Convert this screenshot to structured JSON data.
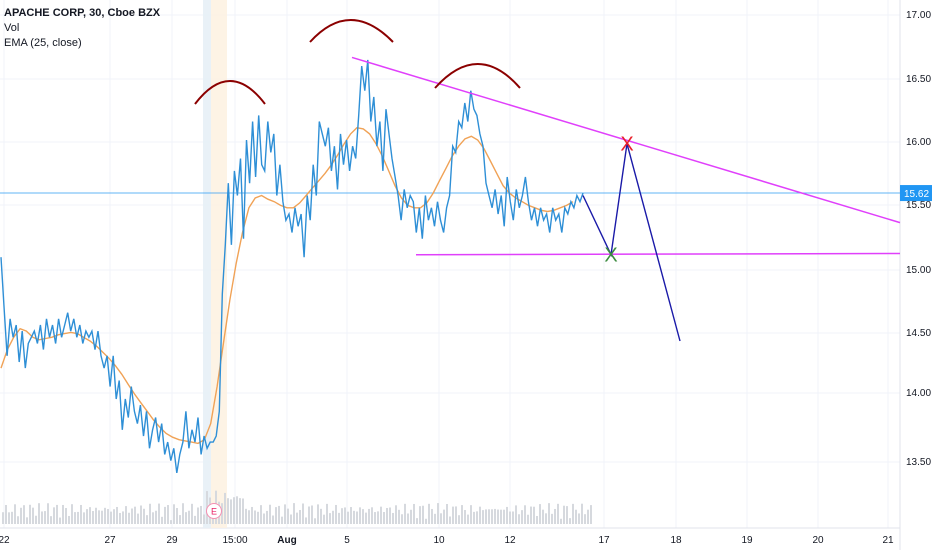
{
  "legend": {
    "title": "APACHE CORP, 30, Cboe BZX",
    "vol": "Vol",
    "ema": "EMA (25, close)"
  },
  "current_price": "15.62",
  "earnings_marker": "E",
  "colors": {
    "price": "#2e8fd6",
    "ema": "#f0a256",
    "trendline": "#e040fb",
    "projection": "#1a1aa8",
    "arcs": "#8b0000",
    "x_red": "#e8202a",
    "x_green": "#3d8c40",
    "price_line": "#2196f3",
    "axis_text": "#131722",
    "volume": "#d6d9de"
  },
  "chart_data": {
    "type": "line",
    "title": "APACHE CORP, 30, Cboe BZX",
    "x_ticks": [
      "22",
      "27",
      "29",
      "15:00",
      "Aug",
      "5",
      "10",
      "12",
      "17",
      "18",
      "19",
      "20",
      "21"
    ],
    "y_ticks": [
      "13.50",
      "14.00",
      "14.50",
      "15.00",
      "15.50",
      "16.00",
      "16.50",
      "17.00"
    ],
    "ylim": [
      13.05,
      17.05
    ],
    "current_price": 15.62,
    "series": [
      {
        "name": "",
        "values": [
          15.1,
          14.7,
          14.3,
          14.6,
          14.45,
          14.55,
          14.25,
          14.5,
          14.2,
          14.4,
          14.45,
          14.5,
          14.4,
          14.55,
          14.35,
          14.6,
          14.45,
          14.55,
          14.4,
          14.6,
          14.45,
          14.55,
          14.65,
          14.5,
          14.6,
          14.45,
          14.55,
          14.4,
          14.5,
          14.45,
          14.5,
          14.35,
          14.5,
          14.3,
          14.2,
          14.3,
          14.05,
          14.3,
          13.95,
          14.1,
          13.7,
          13.95,
          13.8,
          14.05,
          13.85,
          13.75,
          13.9,
          13.65,
          13.85,
          13.55,
          13.7,
          13.8,
          13.6,
          13.75,
          13.5,
          13.6,
          13.45,
          13.55,
          13.35,
          13.5,
          13.6,
          13.85,
          13.55,
          13.7,
          13.6,
          13.8,
          13.5,
          13.65,
          13.55,
          13.6,
          13.6,
          13.65,
          13.85,
          14.8,
          15.2,
          15.7,
          15.2,
          15.8,
          15.6,
          15.9,
          15.25,
          16.05,
          15.7,
          16.2,
          15.75,
          16.25,
          15.85,
          15.8,
          16.2,
          15.95,
          16.1,
          15.6,
          15.85,
          15.55,
          15.4,
          15.45,
          15.3,
          15.5,
          15.35,
          15.45,
          15.1,
          15.6,
          15.4,
          15.85,
          15.6,
          16.2,
          16.1,
          16.0,
          16.15,
          15.8,
          16.0,
          15.65,
          16.1,
          15.85,
          16.05,
          15.8,
          16.0,
          15.9,
          16.25,
          16.65,
          16.45,
          16.7,
          16.2,
          16.4,
          16.0,
          16.2,
          15.8,
          16.3,
          16.1,
          15.9,
          15.75,
          15.6,
          15.4,
          15.65,
          15.5,
          15.6,
          15.55,
          15.3,
          15.5,
          15.25,
          15.6,
          15.4,
          15.5,
          15.35,
          15.55,
          15.4,
          15.3,
          15.5,
          15.6,
          16.0,
          15.95,
          16.2,
          16.15,
          16.35,
          16.2,
          16.45,
          16.3,
          16.25,
          16.1,
          16.0,
          15.7,
          15.6,
          15.5,
          15.65,
          15.45,
          15.6,
          15.35,
          15.75,
          15.55,
          15.4,
          15.65,
          15.5,
          15.6,
          15.75,
          15.55,
          15.4,
          15.5,
          15.35,
          15.5,
          15.4,
          15.45,
          15.3,
          15.5,
          15.4,
          15.45,
          15.3,
          15.5,
          15.45,
          15.55,
          15.5,
          15.6,
          15.55,
          15.62
        ],
        "color": "#2e8fd6"
      },
      {
        "name": "",
        "values": [
          14.2,
          14.35,
          14.45,
          14.52,
          14.5,
          14.45,
          14.43,
          14.44,
          14.45,
          14.47,
          14.48,
          14.49,
          14.48,
          14.45,
          14.42,
          14.38,
          14.33,
          14.28,
          14.22,
          14.15,
          14.07,
          13.99,
          13.92,
          13.85,
          13.78,
          13.72,
          13.67,
          13.64,
          13.62,
          13.61,
          13.6,
          13.59,
          13.62,
          13.75,
          14.05,
          14.4,
          14.75,
          15.05,
          15.3,
          15.5,
          15.58,
          15.6,
          15.57,
          15.55,
          15.52,
          15.5,
          15.5,
          15.54,
          15.6,
          15.66,
          15.72,
          15.78,
          15.85,
          15.93,
          16.02,
          16.1,
          16.15,
          16.14,
          16.1,
          16.02,
          15.92,
          15.8,
          15.68,
          15.58,
          15.52,
          15.5,
          15.5,
          15.54,
          15.62,
          15.72,
          15.82,
          15.92,
          16.0,
          16.06,
          16.08,
          16.05,
          15.98,
          15.88,
          15.78,
          15.68,
          15.62,
          15.58,
          15.55,
          15.52,
          15.5,
          15.48,
          15.47,
          15.48,
          15.5,
          15.52,
          15.55
        ],
        "color": "#f0a256"
      }
    ],
    "annotations": {
      "resistance_trendline": [
        [
          "Aug 5",
          16.72
        ],
        [
          "Aug 21",
          15.38
        ]
      ],
      "support_line": [
        [
          "Aug 9",
          15.12
        ],
        [
          "Aug 21",
          15.13
        ]
      ],
      "projection": [
        15.6,
        15.12,
        16.02,
        14.42
      ],
      "marker_red": "X",
      "marker_green": "X"
    }
  }
}
